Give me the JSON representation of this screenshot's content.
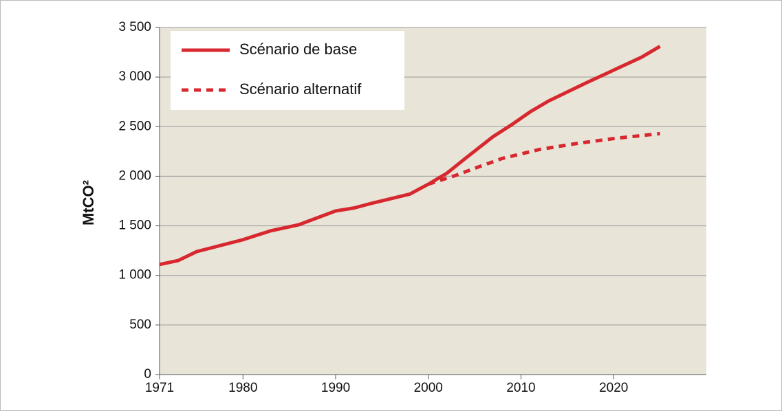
{
  "chart_data": {
    "type": "line",
    "ylabel": "MtCO²",
    "xlim": [
      1971,
      2030
    ],
    "xticks": [
      1971,
      1980,
      1990,
      2000,
      2010,
      2020
    ],
    "ylim": [
      0,
      3500
    ],
    "yticks": [
      0,
      500,
      {
        "value": 1000,
        "label": "1 000"
      },
      {
        "value": 1500,
        "label": "1 500"
      },
      {
        "value": 2000,
        "label": "2 000"
      },
      {
        "value": 2500,
        "label": "2 500"
      },
      {
        "value": 3000,
        "label": "3 000"
      },
      {
        "value": 3500,
        "label": "3 500"
      }
    ],
    "grid": true,
    "legend": "upper left",
    "series": [
      {
        "name": "Scénario de base",
        "color": "#d7282f",
        "style": "solid",
        "x": [
          1971,
          1973,
          1975,
          1980,
          1983,
          1986,
          1990,
          1992,
          1994,
          1998,
          1999,
          2000,
          2002,
          2004,
          2007,
          2009,
          2011,
          2013,
          2017,
          2020,
          2023,
          2025
        ],
        "values": [
          1110,
          1150,
          1240,
          1360,
          1450,
          1510,
          1650,
          1680,
          1730,
          1820,
          1870,
          1920,
          2030,
          2180,
          2400,
          2520,
          2650,
          2760,
          2940,
          3070,
          3200,
          3310
        ]
      },
      {
        "name": "Scénario alternatif",
        "color": "#d7282f",
        "style": "dashed",
        "x": [
          2000,
          2003,
          2005,
          2008,
          2012,
          2016,
          2020,
          2025
        ],
        "values": [
          1920,
          2010,
          2080,
          2180,
          2270,
          2330,
          2380,
          2430
        ]
      }
    ]
  }
}
